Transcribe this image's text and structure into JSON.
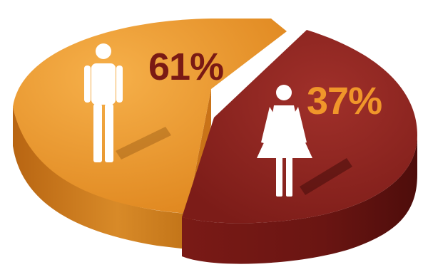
{
  "chart_data": {
    "type": "pie",
    "categories": [
      "men",
      "women"
    ],
    "values": [
      61,
      37
    ],
    "labels": [
      "61%",
      "37%"
    ],
    "colors": {
      "men_top": "#E8922A",
      "men_side": "#C97318",
      "women_top": "#8E2420",
      "women_side": "#6A1512",
      "men_label": "#7A1A14",
      "women_label": "#F0962A"
    },
    "icons": [
      "male-figure-icon",
      "female-figure-icon"
    ]
  }
}
